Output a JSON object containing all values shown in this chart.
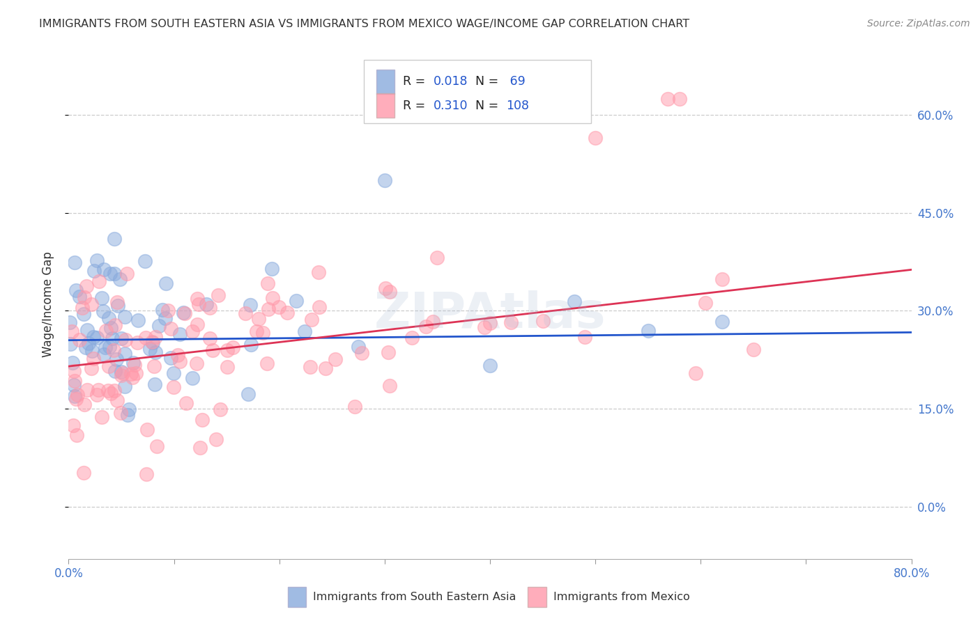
{
  "title": "IMMIGRANTS FROM SOUTH EASTERN ASIA VS IMMIGRANTS FROM MEXICO WAGE/INCOME GAP CORRELATION CHART",
  "source": "Source: ZipAtlas.com",
  "ylabel": "Wage/Income Gap",
  "series1_label": "Immigrants from South Eastern Asia",
  "series2_label": "Immigrants from Mexico",
  "series1_R": 0.018,
  "series1_N": 69,
  "series2_R": 0.31,
  "series2_N": 108,
  "series1_color": "#88AADD",
  "series2_color": "#FF99AA",
  "trend1_color": "#2255CC",
  "trend2_color": "#DD3355",
  "xlim": [
    0.0,
    0.8
  ],
  "ylim": [
    -0.08,
    0.7
  ],
  "xtick_vals": [
    0.0,
    0.1,
    0.2,
    0.3,
    0.4,
    0.5,
    0.6,
    0.7,
    0.8
  ],
  "ytick_vals": [
    0.0,
    0.15,
    0.3,
    0.45,
    0.6
  ],
  "ytick_labels": [
    "0.0%",
    "15.0%",
    "30.0%",
    "45.0%",
    "60.0%"
  ],
  "watermark": "ZIPAtlas",
  "background_color": "#ffffff",
  "grid_color": "#cccccc",
  "title_color": "#333333"
}
